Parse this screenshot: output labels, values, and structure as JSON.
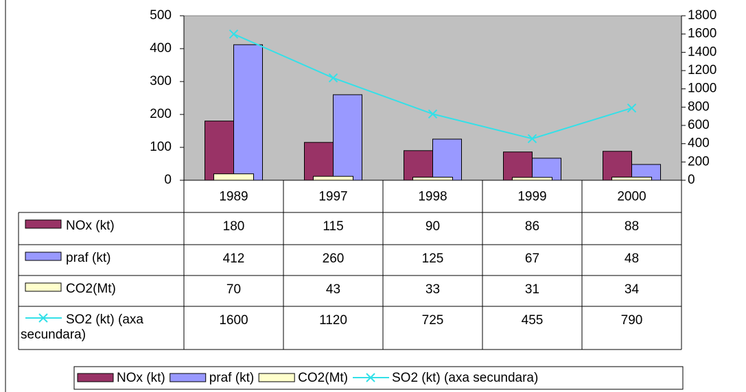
{
  "chart_data": {
    "type": "bar",
    "categories": [
      "1989",
      "1997",
      "1998",
      "1999",
      "2000"
    ],
    "series": [
      {
        "name": "NOx (kt)",
        "color": "#993366",
        "values": [
          180,
          115,
          90,
          86,
          88
        ]
      },
      {
        "name": "praf (kt)",
        "color": "#9999ff",
        "values": [
          412,
          260,
          125,
          67,
          48
        ]
      },
      {
        "name": "CO2(Mt)",
        "color": "#ffffcc",
        "values": [
          70,
          43,
          33,
          31,
          34
        ],
        "axis": "y2"
      },
      {
        "name": "SO2 (kt) (axa secundara)",
        "color": "#33e0e8",
        "values": [
          1600,
          1120,
          725,
          455,
          790
        ],
        "axis": "y2",
        "type": "line"
      }
    ],
    "ylim": [
      0,
      500
    ],
    "yticks": [
      0,
      100,
      200,
      300,
      400,
      500
    ],
    "y2lim": [
      0,
      1800
    ],
    "y2ticks": [
      0,
      200,
      400,
      600,
      800,
      1000,
      1200,
      1400,
      1600,
      1800
    ],
    "plot_background": "#c0c0c0",
    "legend": "bottom",
    "data_table": true
  }
}
